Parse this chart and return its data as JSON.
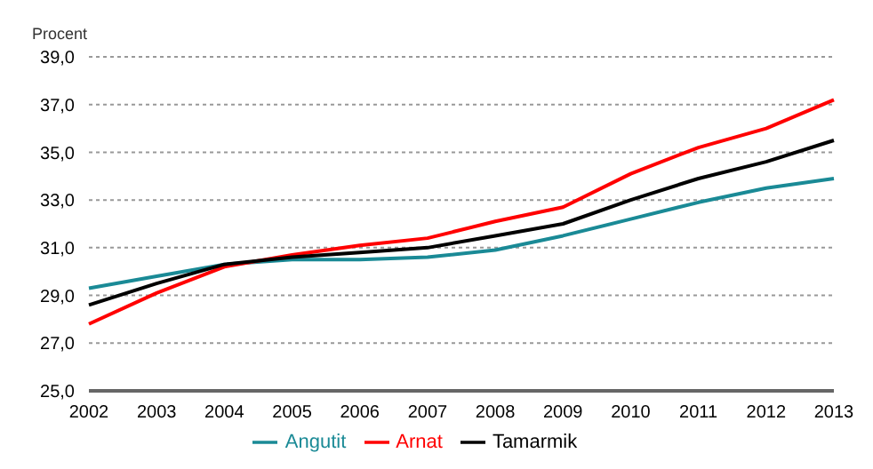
{
  "chart_data": {
    "type": "line",
    "ylabel": "Procent",
    "categories": [
      "2002",
      "2003",
      "2004",
      "2005",
      "2006",
      "2007",
      "2008",
      "2009",
      "2010",
      "2011",
      "2012",
      "2013"
    ],
    "series": [
      {
        "name": "Angutit",
        "color": "#1a8a96",
        "values": [
          29.3,
          29.8,
          30.3,
          30.5,
          30.5,
          30.6,
          30.9,
          31.5,
          32.2,
          32.9,
          33.5,
          33.9
        ]
      },
      {
        "name": "Arnat",
        "color": "#ff0000",
        "values": [
          27.8,
          29.1,
          30.2,
          30.7,
          31.1,
          31.4,
          32.1,
          32.7,
          34.1,
          35.2,
          36.0,
          37.2
        ]
      },
      {
        "name": "Tamarmik",
        "color": "#000000",
        "values": [
          28.6,
          29.5,
          30.3,
          30.6,
          30.8,
          31.0,
          31.5,
          32.0,
          33.0,
          33.9,
          34.6,
          35.5
        ]
      }
    ],
    "ylim": [
      25,
      39
    ],
    "yticks": [
      {
        "value": 25,
        "label": "25,0"
      },
      {
        "value": 27,
        "label": "27,0"
      },
      {
        "value": 29,
        "label": "29,0"
      },
      {
        "value": 31,
        "label": "31,0"
      },
      {
        "value": 33,
        "label": "33,0"
      },
      {
        "value": 35,
        "label": "35,0"
      },
      {
        "value": 37,
        "label": "37,0"
      },
      {
        "value": 39,
        "label": "39,0"
      }
    ],
    "grid": "y",
    "legend": "bottom",
    "marker": "none",
    "line_style": "solid"
  }
}
